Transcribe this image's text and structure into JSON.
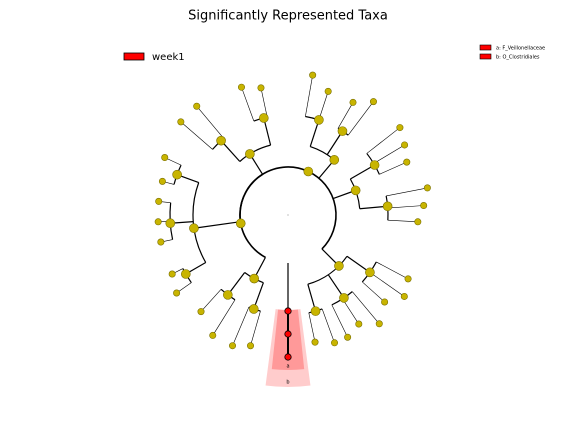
{
  "title": "Significantly Represented Taxa",
  "legend": [
    {
      "label": "week1",
      "color": "#ff0000"
    }
  ],
  "key": [
    "a: F_Veillonellaceae",
    "b: O_Clostridiales"
  ],
  "clade_labels": [
    "a",
    "b"
  ]
}
